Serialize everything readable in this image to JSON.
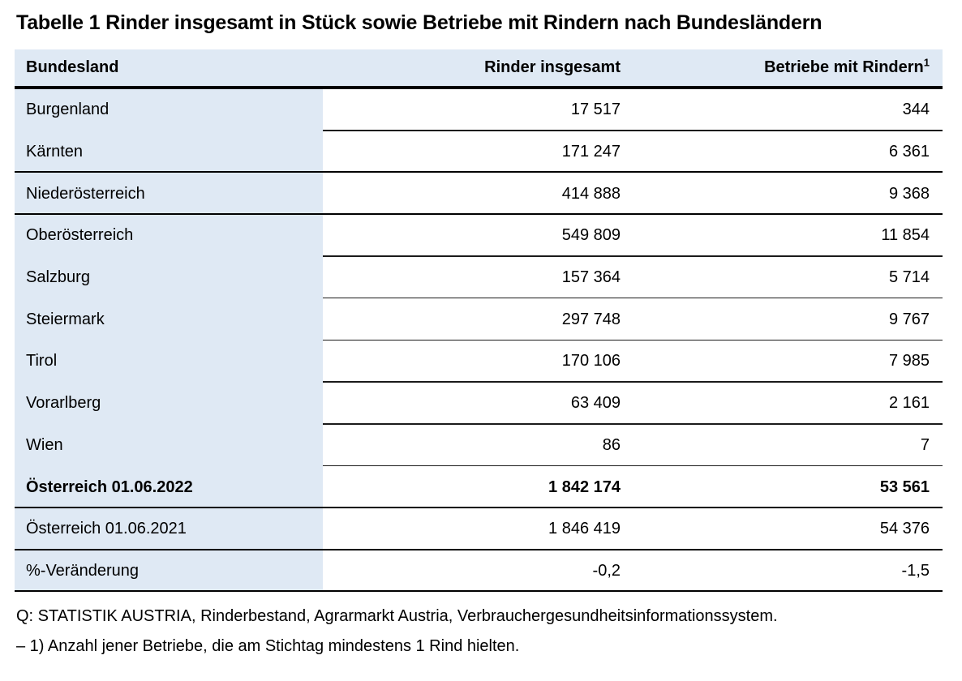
{
  "title": "Tabelle 1 Rinder insgesamt in Stück sowie Betriebe mit Rindern nach Bundesländern",
  "colors": {
    "header_bg": "#dfe9f4",
    "rule_thick": "#000000",
    "rule_thin": "#1a1a1a"
  },
  "table": {
    "columns": [
      {
        "label": "Bundesland"
      },
      {
        "label": "Rinder insgesamt"
      },
      {
        "label": "Betriebe mit Rindern",
        "sup": "1"
      }
    ],
    "rows": [
      {
        "name": "Burgenland",
        "rinder": "17 517",
        "betriebe": "344",
        "bold": false,
        "full_divider": false
      },
      {
        "name": "Kärnten",
        "rinder": "171 247",
        "betriebe": "6 361",
        "bold": false,
        "full_divider": true
      },
      {
        "name": "Niederösterreich",
        "rinder": "414 888",
        "betriebe": "9 368",
        "bold": false,
        "full_divider": true
      },
      {
        "name": "Oberösterreich",
        "rinder": "549 809",
        "betriebe": "11 854",
        "bold": false,
        "full_divider": false
      },
      {
        "name": "Salzburg",
        "rinder": "157 364",
        "betriebe": "5 714",
        "bold": false,
        "full_divider": false
      },
      {
        "name": "Steiermark",
        "rinder": "297 748",
        "betriebe": "9 767",
        "bold": false,
        "full_divider": false
      },
      {
        "name": "Tirol",
        "rinder": "170 106",
        "betriebe": "7 985",
        "bold": false,
        "full_divider": false
      },
      {
        "name": "Vorarlberg",
        "rinder": "63 409",
        "betriebe": "2 161",
        "bold": false,
        "full_divider": false
      },
      {
        "name": "Wien",
        "rinder": "86",
        "betriebe": "7",
        "bold": false,
        "full_divider": false
      },
      {
        "name": "Österreich 01.06.2022",
        "rinder": "1 842 174",
        "betriebe": "53 561",
        "bold": true,
        "full_divider": true
      },
      {
        "name": "Österreich 01.06.2021",
        "rinder": "1 846 419",
        "betriebe": "54 376",
        "bold": false,
        "full_divider": true
      },
      {
        "name": "%-Veränderung",
        "rinder": "-0,2",
        "betriebe": "-1,5",
        "bold": false,
        "full_divider": true
      }
    ]
  },
  "footer": {
    "source": "Q: STATISTIK AUSTRIA, Rinderbestand, Agrarmarkt Austria, Verbrauchergesundheitsinformationssystem.",
    "footnote": "– 1) Anzahl jener Betriebe, die am Stichtag mindestens 1 Rind hielten."
  }
}
